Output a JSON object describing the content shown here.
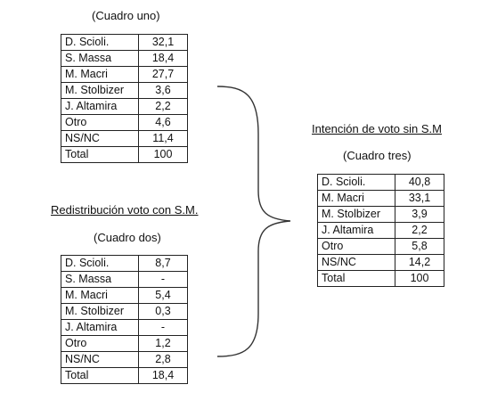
{
  "cuadro_uno": {
    "caption": "(Cuadro uno)",
    "rows": [
      {
        "label": "D. Scioli.",
        "value": "32,1"
      },
      {
        "label": "S. Massa",
        "value": "18,4"
      },
      {
        "label": "M. Macri",
        "value": "27,7"
      },
      {
        "label": "M. Stolbizer",
        "value": "3,6"
      },
      {
        "label": "J. Altamira",
        "value": "2,2"
      },
      {
        "label": "Otro",
        "value": "4,6"
      },
      {
        "label": "NS/NC",
        "value": "11,4"
      },
      {
        "label": "Total",
        "value": "100"
      }
    ]
  },
  "cuadro_dos": {
    "heading": "Redistribución voto con S.M.",
    "caption": "(Cuadro dos)",
    "rows": [
      {
        "label": "D. Scioli.",
        "value": "8,7"
      },
      {
        "label": "S. Massa",
        "value": "-"
      },
      {
        "label": "M. Macri",
        "value": "5,4"
      },
      {
        "label": "M. Stolbizer",
        "value": "0,3"
      },
      {
        "label": "J. Altamira",
        "value": "-"
      },
      {
        "label": "Otro",
        "value": "1,2"
      },
      {
        "label": "NS/NC",
        "value": "2,8"
      },
      {
        "label": "Total",
        "value": "18,4"
      }
    ]
  },
  "cuadro_tres": {
    "heading": "Intención de voto sin S.M",
    "caption": "(Cuadro tres)",
    "rows": [
      {
        "label": "D. Scioli.",
        "value": "40,8"
      },
      {
        "label": "M. Macri",
        "value": "33,1"
      },
      {
        "label": "M. Stolbizer",
        "value": "3,9"
      },
      {
        "label": "J. Altamira",
        "value": "2,2"
      },
      {
        "label": "Otro",
        "value": "5,8"
      },
      {
        "label": "NS/NC",
        "value": "14,2"
      },
      {
        "label": "Total",
        "value": "100"
      }
    ]
  }
}
